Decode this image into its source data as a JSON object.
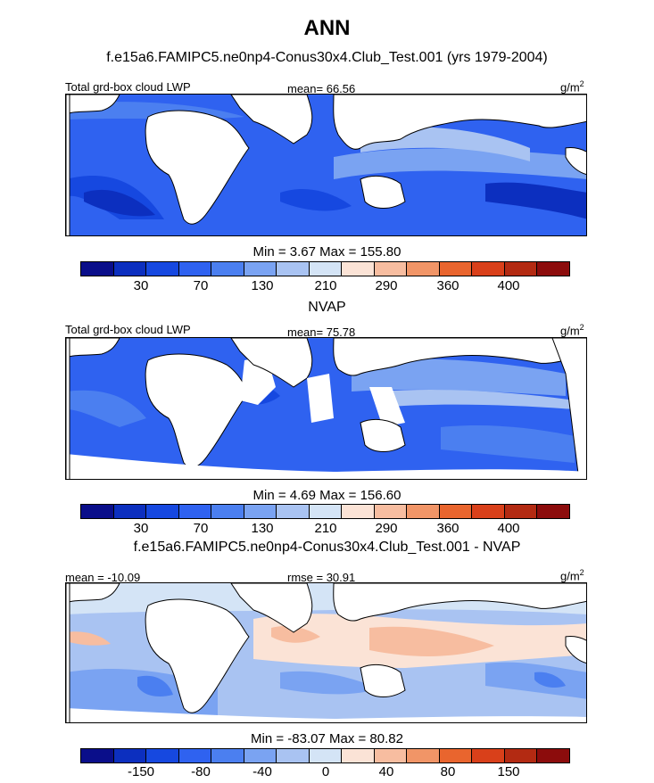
{
  "title": "ANN",
  "colors": {
    "abs_scale": [
      "#0a0e8a",
      "#0c2fbf",
      "#1648e0",
      "#2f62f0",
      "#4b7ff0",
      "#7aa3f2",
      "#a9c3f2",
      "#d4e4f6",
      "#fbe3d6",
      "#f7bda0",
      "#f19567",
      "#e9652e",
      "#d9401a",
      "#b32a12",
      "#8c0c0c"
    ],
    "diff_scale": [
      "#0a0e8a",
      "#0c2fbf",
      "#1648e0",
      "#2f62f0",
      "#4b7ff0",
      "#7aa3f2",
      "#a9c3f2",
      "#d4e4f6",
      "#fbe3d6",
      "#f7bda0",
      "#f19567",
      "#e9652e",
      "#d9401a",
      "#b32a12",
      "#8c0c0c"
    ],
    "land": "#ffffff",
    "missing": "#ffffff"
  },
  "panels": [
    {
      "title": "f.e15a6.FAMIPC5.ne0np4-Conus30x4.Club_Test.001 (yrs 1979-2004)",
      "left_label": "Total grd-box cloud LWP",
      "center_label": "mean=  66.56",
      "unit": "g/m",
      "unit_sup": "2",
      "minmax": "Min =    3.67 Max = 155.80",
      "ticks": [
        "30",
        "70",
        "130",
        "210",
        "290",
        "360",
        "400"
      ]
    },
    {
      "title": "NVAP",
      "left_label": "Total grd-box cloud LWP",
      "center_label": "mean=  75.78",
      "unit": "g/m",
      "unit_sup": "2",
      "minmax": "Min =    4.69 Max = 156.60",
      "ticks": [
        "30",
        "70",
        "130",
        "210",
        "290",
        "360",
        "400"
      ]
    },
    {
      "title": "f.e15a6.FAMIPC5.ne0np4-Conus30x4.Club_Test.001 - NVAP",
      "left_label": "mean = -10.09",
      "center_label": "rmse =  30.91",
      "unit": "g/m",
      "unit_sup": "2",
      "minmax": "Min = -83.07 Max =  80.82",
      "ticks": [
        "-150",
        "-80",
        "-40",
        "0",
        "40",
        "80",
        "150"
      ]
    }
  ]
}
